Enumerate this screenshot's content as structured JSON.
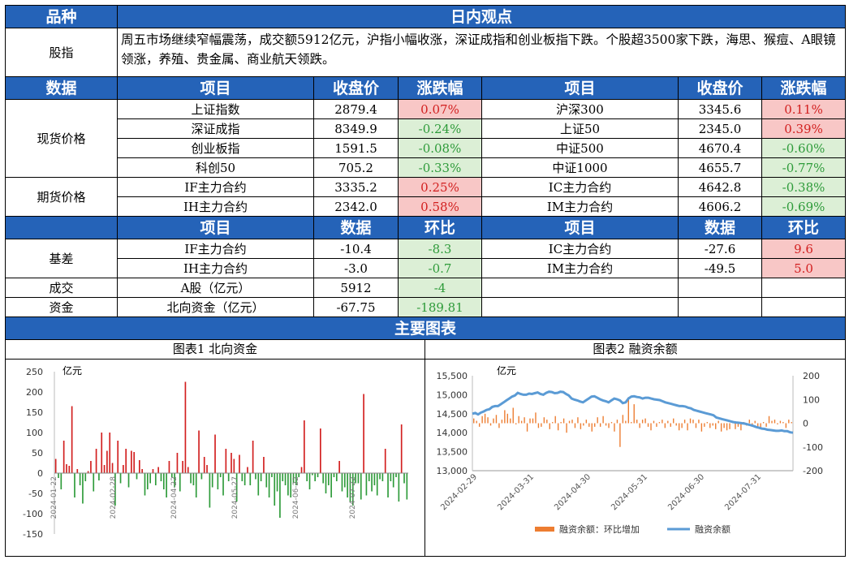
{
  "header": {
    "variety": "品种",
    "view": "日内观点"
  },
  "index_row": {
    "label": "股指",
    "text": "周五市场继续窄幅震荡，成交额5912亿元，沪指小幅收涨，深证成指和创业板指下跌。个股超3500家下跌，海思、猴痘、A眼镜领涨，养殖、贵金属、商业航天领跌。"
  },
  "data_header": {
    "data": "数据",
    "item": "项目",
    "close": "收盘价",
    "change": "涨跌幅"
  },
  "spot": {
    "label": "现货价格",
    "rows": [
      {
        "l_item": "上证指数",
        "l_close": "2879.4",
        "l_chg": "0.07%",
        "l_up": true,
        "r_item": "沪深300",
        "r_close": "3345.6",
        "r_chg": "0.11%",
        "r_up": true
      },
      {
        "l_item": "深证成指",
        "l_close": "8349.9",
        "l_chg": "-0.24%",
        "l_up": false,
        "r_item": "上证50",
        "r_close": "2345.0",
        "r_chg": "0.39%",
        "r_up": true
      },
      {
        "l_item": "创业板指",
        "l_close": "1591.5",
        "l_chg": "-0.08%",
        "l_up": false,
        "r_item": "中证500",
        "r_close": "4670.4",
        "r_chg": "-0.60%",
        "r_up": false
      },
      {
        "l_item": "科创50",
        "l_close": "705.2",
        "l_chg": "-0.33%",
        "l_up": false,
        "r_item": "中证1000",
        "r_close": "4655.7",
        "r_chg": "-0.77%",
        "r_up": false
      }
    ]
  },
  "futures": {
    "label": "期货价格",
    "rows": [
      {
        "l_item": "IF主力合约",
        "l_close": "3335.2",
        "l_chg": "0.25%",
        "l_up": true,
        "r_item": "IC主力合约",
        "r_close": "4642.8",
        "r_chg": "-0.38%",
        "r_up": false
      },
      {
        "l_item": "IH主力合约",
        "l_close": "2342.0",
        "l_chg": "0.58%",
        "l_up": true,
        "r_item": "IM主力合约",
        "r_close": "4606.2",
        "r_chg": "-0.69%",
        "r_up": false
      }
    ]
  },
  "basis_header": {
    "item": "项目",
    "data": "数据",
    "mom": "环比"
  },
  "basis": {
    "label": "基差",
    "rows": [
      {
        "l_item": "IF主力合约",
        "l_val": "-10.4",
        "l_mom": "-8.3",
        "l_up": false,
        "r_item": "IC主力合约",
        "r_val": "-27.6",
        "r_mom": "9.6",
        "r_up": true
      },
      {
        "l_item": "IH主力合约",
        "l_val": "-3.0",
        "l_mom": "-0.7",
        "l_up": false,
        "r_item": "IM主力合约",
        "r_val": "-49.5",
        "r_mom": "5.0",
        "r_up": true
      }
    ]
  },
  "volume": {
    "label": "成交",
    "item": "A股（亿元）",
    "val": "5912",
    "mom": "-4"
  },
  "capital": {
    "label": "资金",
    "item": "北向资金（亿元）",
    "val": "-67.75",
    "mom": "-189.81"
  },
  "charts_header": "主要图表",
  "colors": {
    "header_blue": "#2563b8",
    "up_red": "#d21f1f",
    "down_green": "#2e9b3a",
    "bar_orange": "#ed7d31",
    "line_blue": "#5b9bd5"
  },
  "chart_data": [
    {
      "type": "bar",
      "title": "图表1 北向资金",
      "ylabel": "亿元",
      "ylim": [
        -150,
        250
      ],
      "yticks": [
        250,
        200,
        150,
        100,
        50,
        0,
        -50,
        -100,
        -150
      ],
      "xtick_labels": [
        "2024-01-22",
        "2024-02-28",
        "2024-04-22",
        "2024-05-27",
        "2024-06-22",
        "2024-07-22"
      ],
      "values": [
        35,
        -12,
        -40,
        80,
        22,
        18,
        165,
        -60,
        10,
        -30,
        -75,
        -20,
        5,
        30,
        -45,
        60,
        -18,
        100,
        20,
        55,
        100,
        25,
        -80,
        80,
        -25,
        20,
        60,
        -35,
        55,
        52,
        -15,
        32,
        10,
        -55,
        -40,
        -25,
        10,
        -30,
        15,
        -20,
        -40,
        -60,
        30,
        -10,
        -35,
        50,
        -45,
        30,
        225,
        15,
        -25,
        -30,
        -60,
        105,
        -15,
        40,
        20,
        -85,
        -35,
        95,
        -40,
        -10,
        -55,
        60,
        -20,
        50,
        35,
        -70,
        45,
        -20,
        -30,
        15,
        -30,
        80,
        -15,
        -55,
        -20,
        40,
        -35,
        -60,
        -10,
        -80,
        -45,
        -110,
        -20,
        -30,
        -55,
        -60,
        -25,
        -30,
        -10,
        15,
        130,
        -20,
        -40,
        -5,
        -20,
        -10,
        110,
        -25,
        -50,
        -30,
        -60,
        -10,
        -20,
        30,
        -45,
        -35,
        -60,
        -70,
        -80,
        -25,
        -25,
        -65,
        195,
        -55,
        -20,
        -45,
        -30,
        -55,
        -15,
        -20,
        60,
        -60,
        -20,
        -35,
        -10,
        -70,
        120,
        -25,
        -65
      ]
    },
    {
      "type": "line",
      "title": "图表2 融资余额",
      "ylabel": "亿元",
      "ylim": [
        13000,
        15500
      ],
      "y2lim": [
        -200,
        200
      ],
      "yticks": [
        15500,
        15000,
        14500,
        14000,
        13500,
        13000
      ],
      "y2ticks": [
        200,
        100,
        0,
        -100,
        -200
      ],
      "xtick_labels": [
        "2024-02-29",
        "2024-03-31",
        "2024-04-30",
        "2024-05-31",
        "2024-06-30",
        "2024-07-31"
      ],
      "series": [
        {
          "name": "融资余额：环比增加",
          "values": [
            20,
            10,
            -15,
            30,
            40,
            25,
            -10,
            20,
            35,
            -20,
            15,
            55,
            40,
            20,
            65,
            -5,
            30,
            10,
            25,
            -35,
            20,
            20,
            45,
            -20,
            -15,
            25,
            15,
            -25,
            5,
            30,
            -30,
            5,
            20,
            -40,
            10,
            15,
            -20,
            25,
            -25,
            -10,
            15,
            -15,
            -35,
            -15,
            25,
            -15,
            30,
            -10,
            -20,
            5,
            -35,
            15,
            -100,
            35,
            10,
            110,
            5,
            80,
            15,
            -20,
            15,
            20,
            -15,
            -30,
            10,
            -15,
            5,
            15,
            -20,
            10,
            -15,
            20,
            -10,
            -30,
            -20,
            15,
            -30,
            20,
            15,
            -20,
            15,
            -35,
            -15,
            5,
            -20,
            -10,
            -25,
            10,
            -35,
            -20,
            -30,
            -25,
            5,
            -25,
            -15,
            -30,
            5,
            -10,
            15,
            -15,
            10,
            -20,
            -25,
            5,
            -15,
            30,
            10,
            15,
            -5,
            10,
            5,
            -20,
            15,
            5
          ]
        },
        {
          "name": "融资余额",
          "values": [
            14500,
            14520,
            14480,
            14530,
            14560,
            14600,
            14620,
            14680,
            14700,
            14700,
            14750,
            14800,
            14850,
            14900,
            14950,
            14980,
            15050,
            15020,
            15000,
            15000,
            15030,
            15020,
            15040,
            15060,
            15020,
            15000,
            15050,
            15080,
            15070,
            15040,
            15050,
            15080,
            15070,
            15020,
            14980,
            14900,
            14870,
            14850,
            14820,
            14800,
            14850,
            14900,
            14950,
            14960,
            14920,
            14880,
            14850,
            14830,
            14800,
            14850,
            14900,
            14880,
            14850,
            14780,
            14800,
            14900,
            14950,
            14960,
            14940,
            14930,
            14900,
            14920,
            14920,
            14900,
            14880,
            14870,
            14860,
            14830,
            14800,
            14780,
            14760,
            14740,
            14720,
            14700,
            14700,
            14690,
            14660,
            14640,
            14600,
            14580,
            14560,
            14540,
            14520,
            14500,
            14480,
            14460,
            14400,
            14380,
            14360,
            14340,
            14320,
            14300,
            14280,
            14270,
            14260,
            14250,
            14240,
            14220,
            14200,
            14180,
            14150,
            14130,
            14110,
            14100,
            14080,
            14070,
            14060,
            14050,
            14050,
            14060,
            14040,
            14040,
            14010,
            14000
          ]
        }
      ],
      "legend": "bottom"
    }
  ]
}
